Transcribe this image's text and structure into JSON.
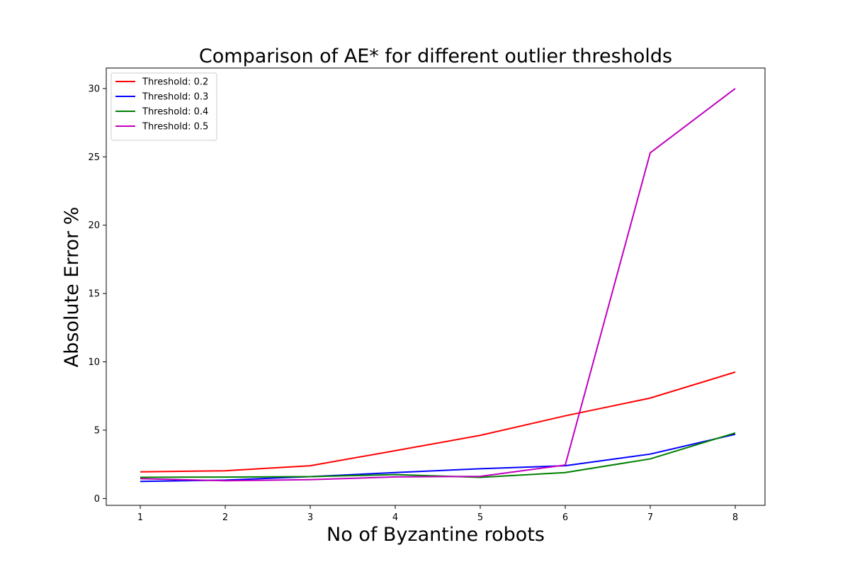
{
  "chart_data": {
    "type": "line",
    "title": "Comparison of AE* for different outlier thresholds",
    "xlabel": "No of Byzantine robots",
    "ylabel": "Absolute Error %",
    "x": [
      1,
      2,
      3,
      4,
      5,
      6,
      7,
      8
    ],
    "xlim": [
      0.6,
      8.35
    ],
    "ylim": [
      -0.5,
      31.5
    ],
    "xticks": [
      1,
      2,
      3,
      4,
      5,
      6,
      7,
      8
    ],
    "yticks": [
      0,
      5,
      10,
      15,
      20,
      25,
      30
    ],
    "grid": false,
    "legend_position": "upper-left",
    "series": [
      {
        "name": "Threshold: 0.2",
        "color": "#ff0000",
        "values": [
          1.95,
          2.03,
          2.4,
          3.5,
          4.62,
          6.05,
          7.35,
          9.25
        ]
      },
      {
        "name": "Threshold: 0.3",
        "color": "#0000ff",
        "values": [
          1.25,
          1.35,
          1.6,
          1.9,
          2.18,
          2.4,
          3.25,
          4.7
        ]
      },
      {
        "name": "Threshold: 0.4",
        "color": "#008000",
        "values": [
          1.55,
          1.57,
          1.6,
          1.75,
          1.55,
          1.9,
          2.9,
          4.8
        ]
      },
      {
        "name": "Threshold: 0.5",
        "color": "#bf00bf",
        "values": [
          1.45,
          1.3,
          1.38,
          1.58,
          1.62,
          2.45,
          25.3,
          30.0
        ]
      }
    ]
  }
}
